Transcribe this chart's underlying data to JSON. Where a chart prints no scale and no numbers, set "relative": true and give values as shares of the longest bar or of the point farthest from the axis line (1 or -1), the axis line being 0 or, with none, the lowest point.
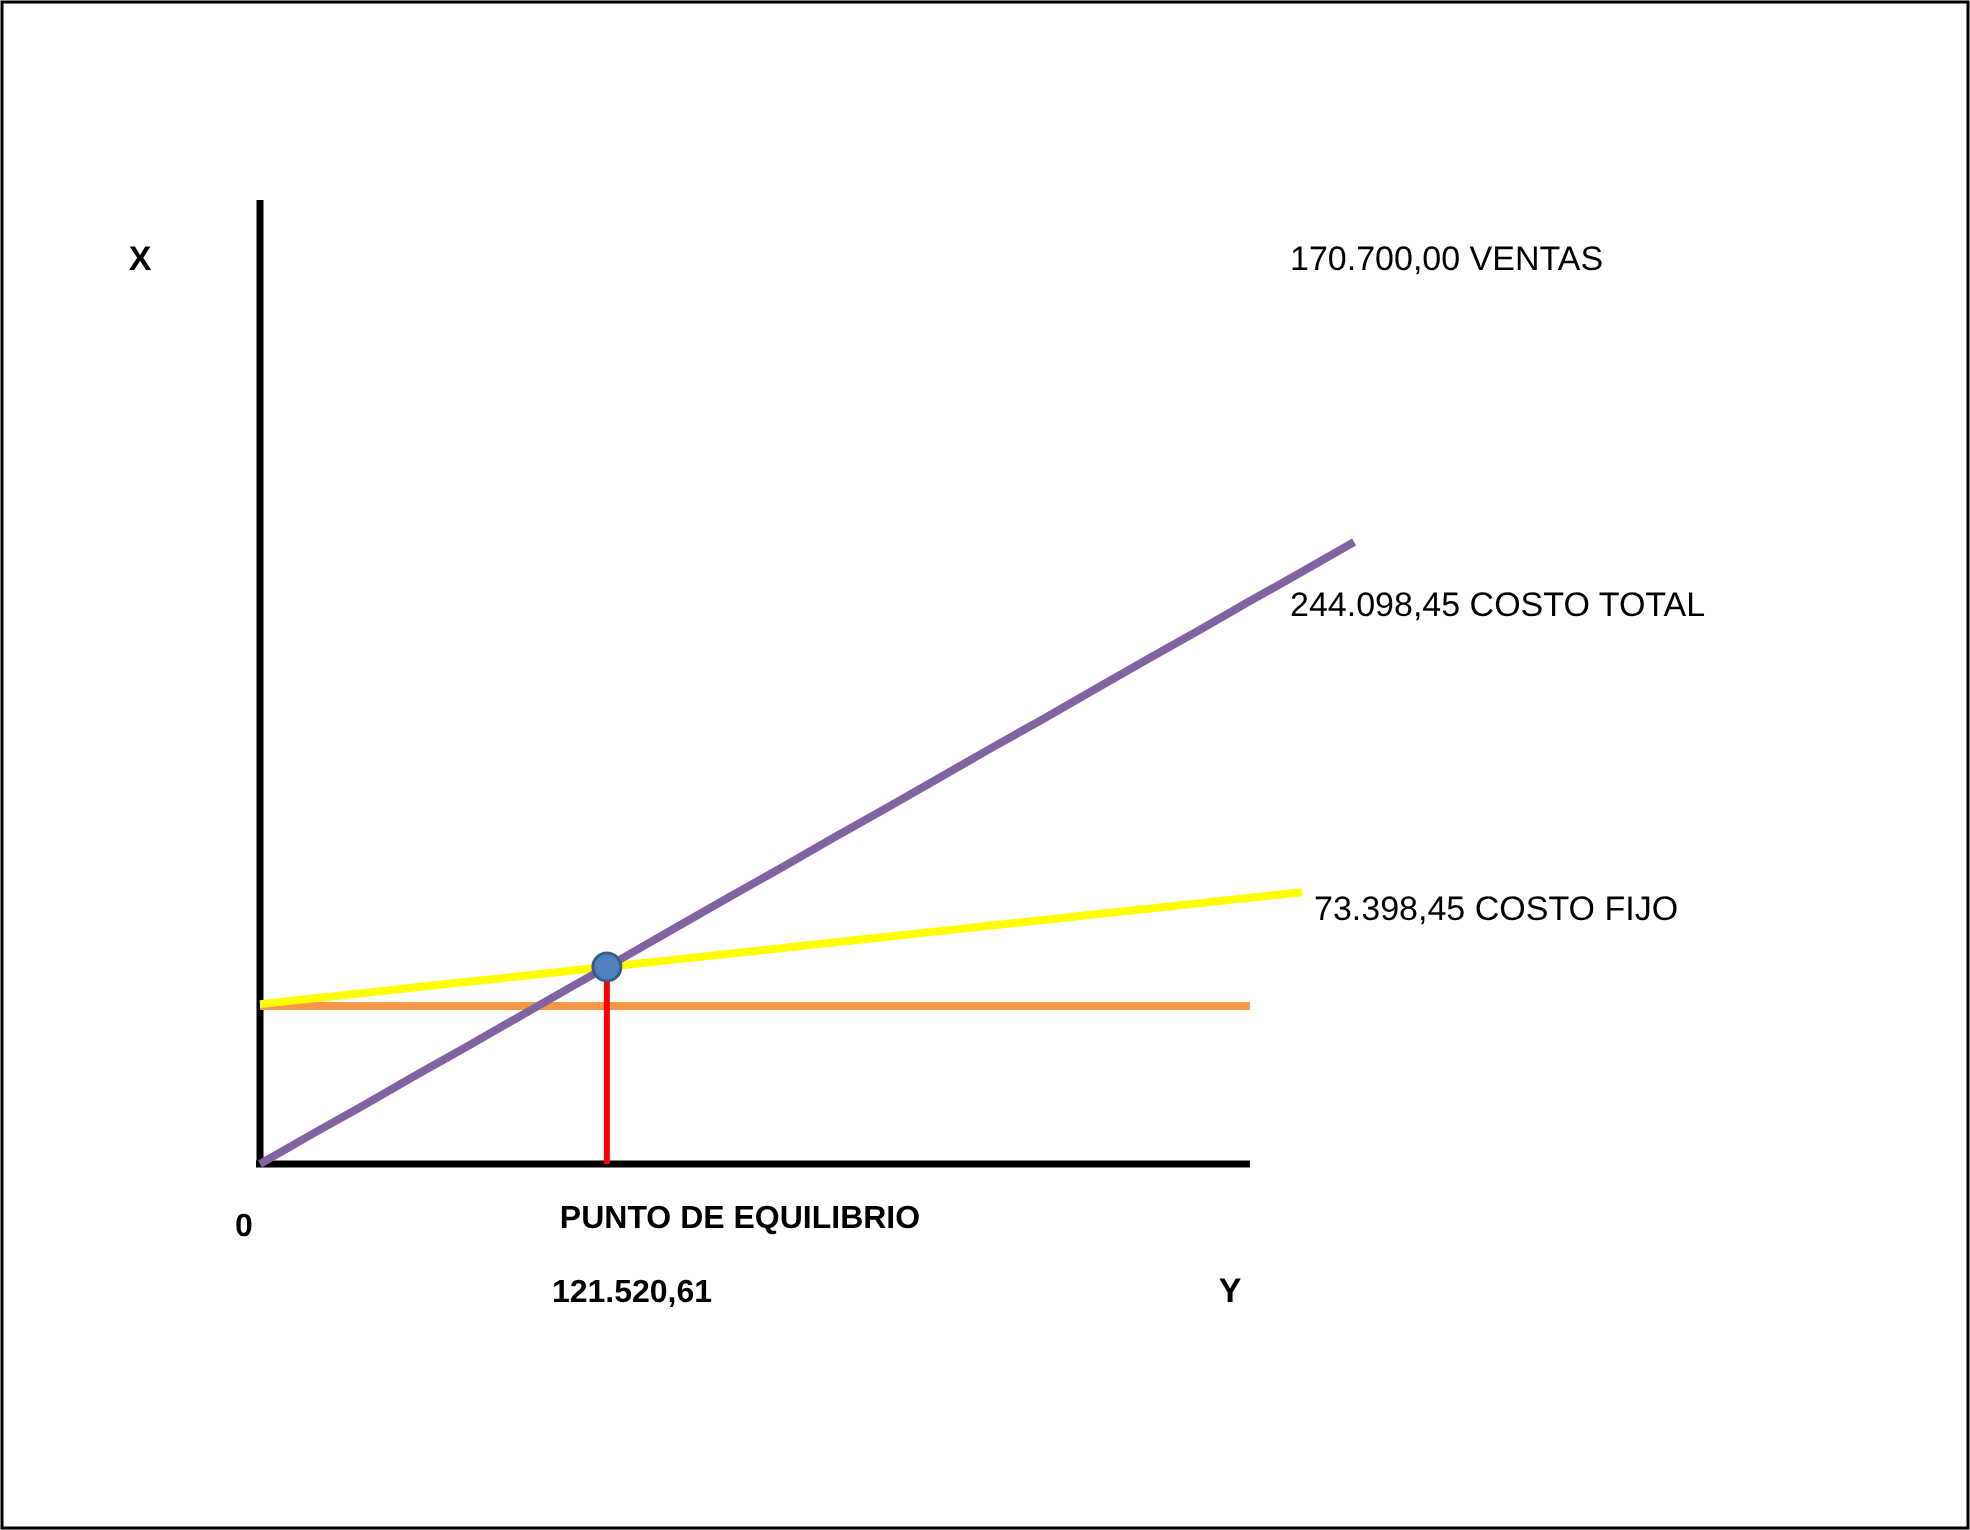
{
  "chart_data": {
    "type": "line",
    "relative": true,
    "xlabel": "Y",
    "categories": [
      null,
      null,
      null,
      null,
      null,
      null,
      null,
      null,
      null,
      null,
      null,
      null,
      null,
      null,
      null,
      null,
      null,
      null,
      null,
      null,
      null,
      null
    ],
    "series": [
      {
        "color": "#f79646",
        "values": [
          0.254,
          0.254,
          0.254,
          0.254,
          0.254,
          0.254,
          0.254,
          0.254,
          0.254,
          0.254,
          0.254,
          0.254,
          0.254,
          0.254,
          0.254,
          0.254,
          0.254,
          0.254,
          0.254,
          0.254,
          null,
          null
        ]
      },
      {
        "color": "#ffff00",
        "values": [
          0.257,
          0.266,
          0.275,
          0.284,
          0.293,
          0.302,
          0.311,
          0.32,
          0.329,
          0.338,
          0.347,
          0.356,
          0.365,
          0.374,
          0.383,
          0.392,
          0.401,
          0.41,
          0.419,
          0.428,
          0.437,
          null
        ]
      },
      {
        "color": "#8064a2",
        "values": [
          0,
          0.048,
          0.095,
          0.143,
          0.19,
          0.238,
          0.286,
          0.333,
          0.381,
          0.429,
          0.476,
          0.524,
          0.571,
          0.619,
          0.667,
          0.714,
          0.762,
          0.81,
          0.857,
          0.905,
          0.952,
          1
        ]
      }
    ],
    "annotations": [
      "170.700,00 VENTAS",
      "244.098,45 COSTO TOTAL",
      "73.398,45 COSTO FIJO",
      "0",
      "PUNTO DE EQUILIBRIO",
      "121.520,61",
      "X"
    ]
  }
}
